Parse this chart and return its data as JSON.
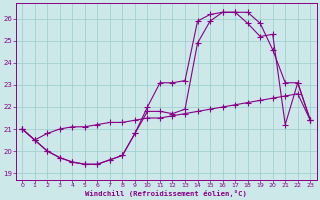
{
  "xlabel": "Windchill (Refroidissement éolien,°C)",
  "bg_color": "#cce8e8",
  "line_color": "#880088",
  "grid_color": "#99cccc",
  "xlim": [
    -0.5,
    23.5
  ],
  "ylim": [
    18.7,
    26.7
  ],
  "yticks": [
    19,
    20,
    21,
    22,
    23,
    24,
    25,
    26
  ],
  "xticks": [
    0,
    1,
    2,
    3,
    4,
    5,
    6,
    7,
    8,
    9,
    10,
    11,
    12,
    13,
    14,
    15,
    16,
    17,
    18,
    19,
    20,
    21,
    22,
    23
  ],
  "curve1_x": [
    0,
    1,
    2,
    3,
    4,
    5,
    6,
    7,
    8,
    9,
    10,
    11,
    12,
    13,
    14,
    15,
    16,
    17,
    18,
    19,
    20,
    21,
    22,
    23
  ],
  "curve1_y": [
    21.0,
    20.5,
    20.0,
    19.7,
    19.5,
    19.4,
    19.4,
    19.6,
    19.8,
    20.8,
    22.0,
    23.1,
    23.1,
    23.2,
    25.9,
    26.2,
    26.3,
    26.3,
    26.3,
    25.8,
    24.6,
    23.1,
    23.1,
    21.4
  ],
  "curve2_x": [
    0,
    1,
    2,
    3,
    4,
    5,
    6,
    7,
    8,
    9,
    10,
    11,
    12,
    13,
    14,
    15,
    16,
    17,
    18,
    19,
    20,
    21,
    22,
    23
  ],
  "curve2_y": [
    21.0,
    20.5,
    20.0,
    19.7,
    19.5,
    19.4,
    19.4,
    19.6,
    19.8,
    20.8,
    21.8,
    21.8,
    21.7,
    21.9,
    24.9,
    25.9,
    26.3,
    26.3,
    25.8,
    25.2,
    25.3,
    21.2,
    23.1,
    21.4
  ],
  "curve3_x": [
    0,
    1,
    2,
    3,
    4,
    5,
    6,
    7,
    8,
    9,
    10,
    11,
    12,
    13,
    14,
    15,
    16,
    17,
    18,
    19,
    20,
    21,
    22,
    23
  ],
  "curve3_y": [
    21.0,
    20.5,
    20.8,
    21.0,
    21.1,
    21.1,
    21.2,
    21.3,
    21.3,
    21.4,
    21.5,
    21.5,
    21.6,
    21.7,
    21.8,
    21.9,
    22.0,
    22.1,
    22.2,
    22.3,
    22.4,
    22.5,
    22.6,
    21.4
  ]
}
